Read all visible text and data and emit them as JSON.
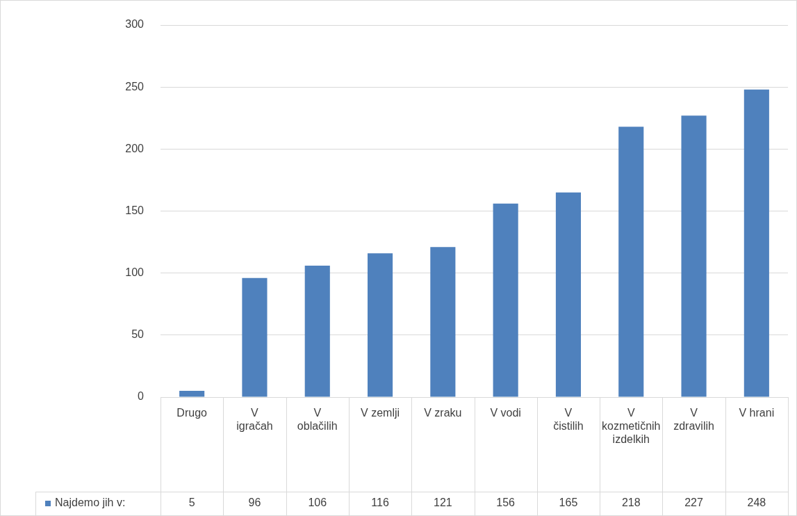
{
  "chart_data": {
    "type": "bar",
    "categories": [
      "Drugo",
      "V igračah",
      "V oblačilih",
      "V zemlji",
      "V zraku",
      "V vodi",
      "V čistilih",
      "V kozmetičnih izdelkih",
      "V zdravilih",
      "V hrani"
    ],
    "series": [
      {
        "name": "Najdemo jih v:",
        "color": "#4f81bd",
        "values": [
          5,
          96,
          106,
          116,
          121,
          156,
          165,
          218,
          227,
          248
        ]
      }
    ],
    "ylim": [
      0,
      300
    ],
    "yticks": [
      0,
      50,
      100,
      150,
      200,
      250,
      300
    ],
    "grid": "y",
    "data_labels": true,
    "legend": "bottom"
  }
}
